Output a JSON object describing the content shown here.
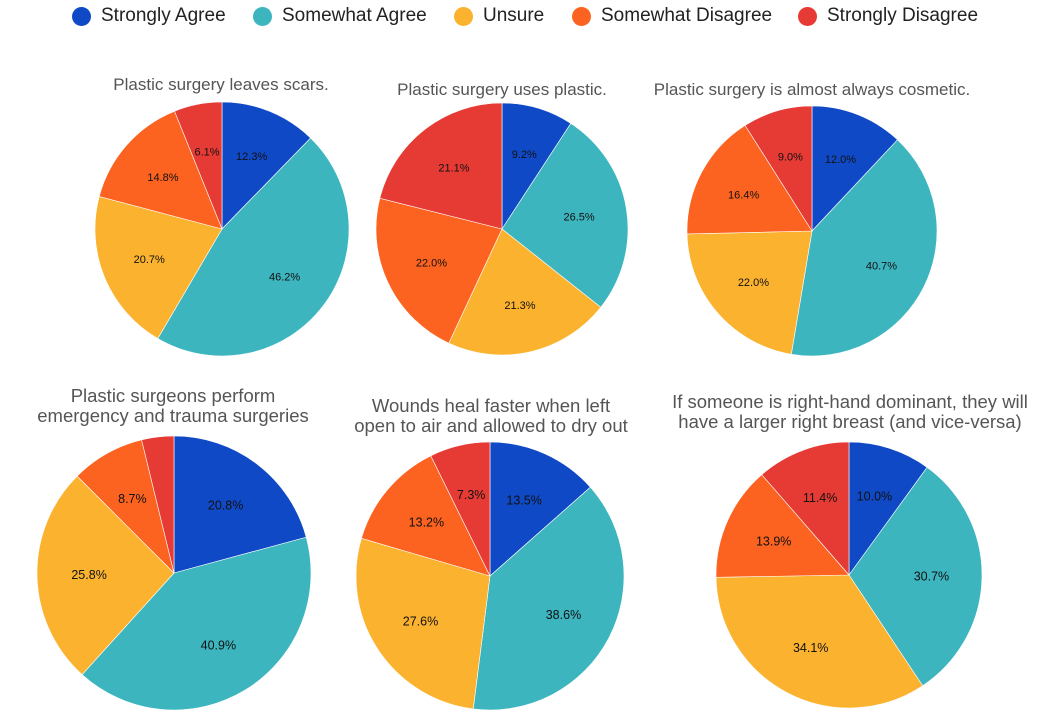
{
  "legend": [
    {
      "label": "Strongly Agree",
      "color": "#1049C6"
    },
    {
      "label": "Somewhat Agree",
      "color": "#3CB5BF"
    },
    {
      "label": "Unsure",
      "color": "#FBB22F"
    },
    {
      "label": "Somewhat Disagree",
      "color": "#FC6320"
    },
    {
      "label": "Strongly Disagree",
      "color": "#E63B35"
    }
  ],
  "chart_data": [
    {
      "type": "pie",
      "title": "Plastic surgery leaves scars.",
      "categories": [
        "Strongly Agree",
        "Somewhat Agree",
        "Unsure",
        "Somewhat Disagree",
        "Strongly Disagree"
      ],
      "values": [
        12.3,
        46.2,
        20.7,
        14.8,
        6.1
      ],
      "labels": [
        "12.3%",
        "46.2%",
        "20.7%",
        "14.8%",
        "6.1%"
      ]
    },
    {
      "type": "pie",
      "title": "Plastic surgery uses plastic.",
      "categories": [
        "Strongly Agree",
        "Somewhat Agree",
        "Unsure",
        "Somewhat Disagree",
        "Strongly Disagree"
      ],
      "values": [
        9.2,
        26.5,
        21.3,
        22.0,
        21.1
      ],
      "labels": [
        "9.2%",
        "26.5%",
        "21.3%",
        "22.0%",
        "21.1%"
      ]
    },
    {
      "type": "pie",
      "title": "Plastic surgery is almost always cosmetic.",
      "categories": [
        "Strongly Agree",
        "Somewhat Agree",
        "Unsure",
        "Somewhat Disagree",
        "Strongly Disagree"
      ],
      "values": [
        12.0,
        40.7,
        22.0,
        16.4,
        9.0
      ],
      "labels": [
        "12.0%",
        "40.7%",
        "22.0%",
        "16.4%",
        "9.0%"
      ]
    },
    {
      "type": "pie",
      "title": "Plastic surgeons perform\nemergency and trauma surgeries",
      "categories": [
        "Strongly Agree",
        "Somewhat Agree",
        "Unsure",
        "Somewhat Disagree",
        "Strongly Disagree"
      ],
      "values": [
        20.8,
        40.9,
        25.8,
        8.7,
        3.8
      ],
      "labels": [
        "20.8%",
        "40.9%",
        "25.8%",
        "8.7%",
        ""
      ]
    },
    {
      "type": "pie",
      "title": "Wounds heal faster when left\nopen to air and allowed to dry out",
      "categories": [
        "Strongly Agree",
        "Somewhat Agree",
        "Unsure",
        "Somewhat Disagree",
        "Strongly Disagree"
      ],
      "values": [
        13.5,
        38.6,
        27.6,
        13.2,
        7.3
      ],
      "labels": [
        "13.5%",
        "38.6%",
        "27.6%",
        "13.2%",
        "7.3%"
      ]
    },
    {
      "type": "pie",
      "title": "If someone is right-hand dominant, they will\nhave a larger right breast (and vice-versa)",
      "categories": [
        "Strongly Agree",
        "Somewhat Agree",
        "Unsure",
        "Somewhat Disagree",
        "Strongly Disagree"
      ],
      "values": [
        10.0,
        30.7,
        34.1,
        13.9,
        11.4
      ],
      "labels": [
        "10.0%",
        "30.7%",
        "34.1%",
        "13.9%",
        "11.4%"
      ]
    }
  ]
}
